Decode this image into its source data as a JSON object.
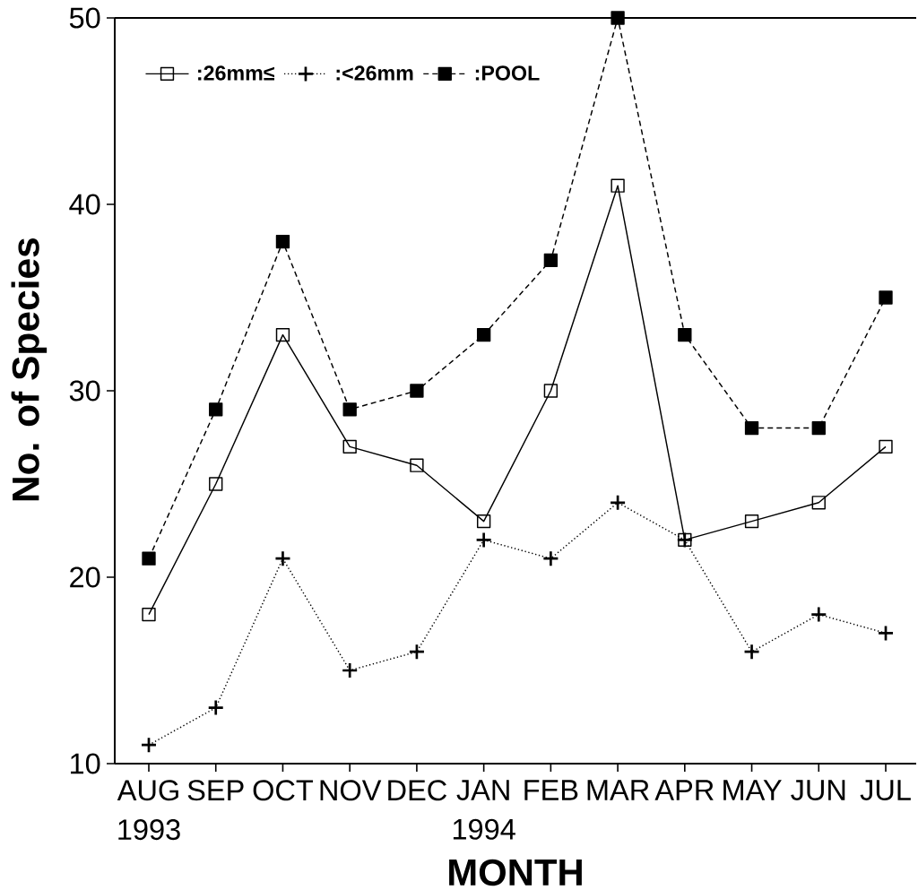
{
  "chart_data": {
    "type": "line",
    "xlabel": "MONTH",
    "ylabel": "No. of Species",
    "categories": [
      "AUG 1993",
      "SEP",
      "OCT",
      "NOV",
      "DEC",
      "JAN 1994",
      "FEB",
      "MAR",
      "APR",
      "MAY",
      "JUN",
      "JUL"
    ],
    "ylim": [
      10,
      50
    ],
    "yticks": [
      10,
      20,
      30,
      40,
      50
    ],
    "legend": "top left",
    "series": [
      {
        "name": ":26mm≤",
        "color": "#000000",
        "marker": "square",
        "line_style": "solid",
        "values": [
          18,
          25,
          33,
          27,
          26,
          23,
          30,
          41,
          22,
          23,
          24,
          27
        ]
      },
      {
        "name": ":<26mm",
        "color": "#000000",
        "marker": "cross",
        "line_style": "dotted",
        "values": [
          11,
          13,
          21,
          15,
          16,
          22,
          21,
          24,
          22,
          16,
          18,
          17
        ]
      },
      {
        "name": ":POOL",
        "color": "#000000",
        "marker": "square",
        "line_style": "dashed",
        "values": [
          21,
          29,
          38,
          29,
          30,
          33,
          37,
          50,
          33,
          28,
          28,
          35
        ]
      }
    ]
  }
}
